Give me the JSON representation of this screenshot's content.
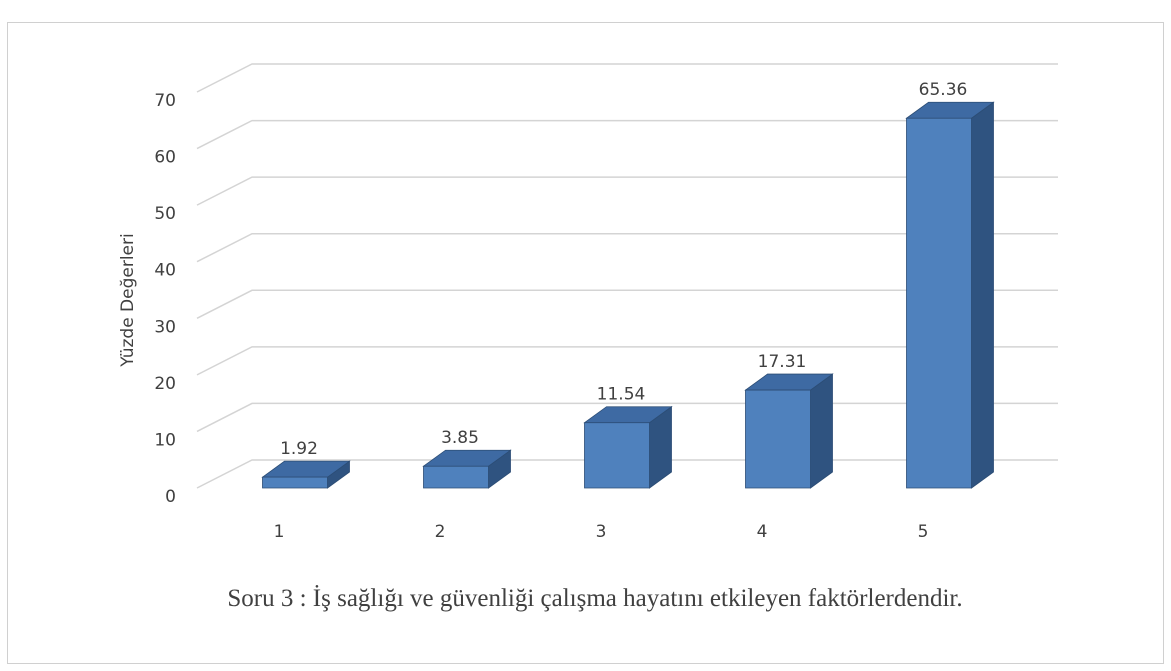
{
  "chart_data": {
    "type": "bar3d",
    "caption": "Soru 3 : İş sağlığı ve güvenliği çalışma hayatını etkileyen faktörlerdendir.",
    "ylabel": "Yüzde Değerleri",
    "categories": [
      "1",
      "2",
      "3",
      "4",
      "5"
    ],
    "values": [
      1.92,
      3.85,
      11.54,
      17.31,
      65.36
    ],
    "color": "#4f81bd",
    "ylim": [
      0,
      70
    ],
    "yticks": [
      0,
      10,
      20,
      30,
      40,
      50,
      60,
      70
    ],
    "grid": true
  }
}
